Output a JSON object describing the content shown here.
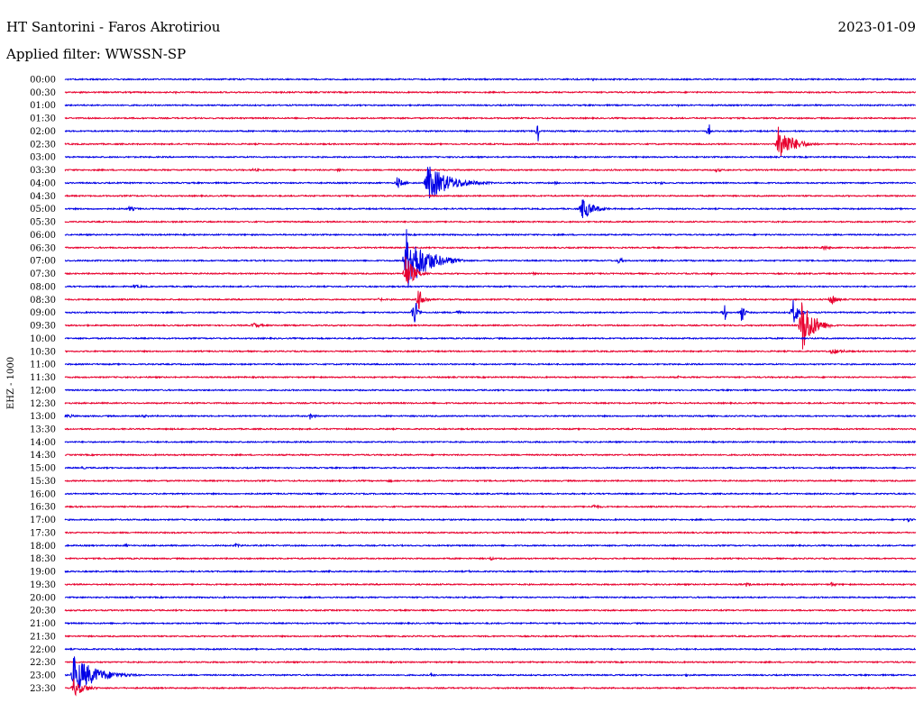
{
  "header": {
    "title": "HT Santorini - Faros Akrotiriou",
    "date": "2023-01-09",
    "filter": "Applied filter: WWSSN-SP"
  },
  "chart_data": {
    "type": "line",
    "title": "HT Santorini - Faros Akrotiriou",
    "ylabel": "EHZ - 1000",
    "filter": "WWSSN-SP",
    "colors": [
      "#0000e6",
      "#e8002e"
    ],
    "traces": [
      {
        "label": "00:00",
        "events": [
          {
            "t": 0.62,
            "a": 3,
            "d": 0.01
          }
        ]
      },
      {
        "label": "00:30",
        "events": [
          {
            "t": 0.13,
            "a": 2,
            "d": 0.01
          }
        ]
      },
      {
        "label": "01:00",
        "events": [
          {
            "t": 0.72,
            "a": 2,
            "d": 0.01
          }
        ]
      },
      {
        "label": "01:30",
        "events": []
      },
      {
        "label": "02:00",
        "events": [
          {
            "t": 0.556,
            "a": 18,
            "d": 0.002
          },
          {
            "t": 0.757,
            "a": 16,
            "d": 0.002
          }
        ]
      },
      {
        "label": "02:30",
        "events": [
          {
            "t": 0.838,
            "a": 22,
            "d": 0.05
          }
        ]
      },
      {
        "label": "03:00",
        "events": []
      },
      {
        "label": "03:30",
        "events": [
          {
            "t": 0.22,
            "a": 2,
            "d": 0.04
          },
          {
            "t": 0.32,
            "a": 3,
            "d": 0.02
          },
          {
            "t": 0.765,
            "a": 3,
            "d": 0.02
          }
        ]
      },
      {
        "label": "04:00",
        "events": [
          {
            "t": 0.39,
            "a": 8,
            "d": 0.02
          },
          {
            "t": 0.425,
            "a": 22,
            "d": 0.08
          },
          {
            "t": 0.575,
            "a": 2,
            "d": 0.02
          },
          {
            "t": 0.7,
            "a": 2,
            "d": 0.02
          }
        ]
      },
      {
        "label": "04:30",
        "events": []
      },
      {
        "label": "05:00",
        "events": [
          {
            "t": 0.075,
            "a": 3,
            "d": 0.03
          },
          {
            "t": 0.607,
            "a": 14,
            "d": 0.04
          }
        ]
      },
      {
        "label": "05:30",
        "events": [
          {
            "t": 0.88,
            "a": 1,
            "d": 0.02
          }
        ]
      },
      {
        "label": "06:00",
        "events": []
      },
      {
        "label": "06:30",
        "events": [
          {
            "t": 0.89,
            "a": 3,
            "d": 0.03
          }
        ]
      },
      {
        "label": "07:00",
        "events": [
          {
            "t": 0.4,
            "a": 38,
            "d": 0.07
          },
          {
            "t": 0.65,
            "a": 4,
            "d": 0.02
          }
        ]
      },
      {
        "label": "07:30",
        "events": [
          {
            "t": 0.4,
            "a": 22,
            "d": 0.03
          },
          {
            "t": 0.55,
            "a": 2,
            "d": 0.01
          },
          {
            "t": 0.76,
            "a": 2,
            "d": 0.01
          }
        ]
      },
      {
        "label": "08:00",
        "events": [
          {
            "t": 0.08,
            "a": 2,
            "d": 0.05
          }
        ]
      },
      {
        "label": "08:30",
        "events": [
          {
            "t": 0.37,
            "a": 6,
            "d": 0.005
          },
          {
            "t": 0.415,
            "a": 14,
            "d": 0.02
          },
          {
            "t": 0.9,
            "a": 8,
            "d": 0.02
          }
        ]
      },
      {
        "label": "09:00",
        "events": [
          {
            "t": 0.41,
            "a": 26,
            "d": 0.01
          },
          {
            "t": 0.46,
            "a": 3,
            "d": 0.02
          },
          {
            "t": 0.775,
            "a": 16,
            "d": 0.005
          },
          {
            "t": 0.795,
            "a": 14,
            "d": 0.01
          },
          {
            "t": 0.855,
            "a": 18,
            "d": 0.02
          }
        ]
      },
      {
        "label": "09:30",
        "events": [
          {
            "t": 0.22,
            "a": 4,
            "d": 0.03
          },
          {
            "t": 0.865,
            "a": 36,
            "d": 0.04
          }
        ]
      },
      {
        "label": "10:00",
        "events": [
          {
            "t": 0.65,
            "a": 1,
            "d": 0.02
          }
        ]
      },
      {
        "label": "10:30",
        "events": [
          {
            "t": 0.9,
            "a": 3,
            "d": 0.06
          }
        ]
      },
      {
        "label": "11:00",
        "events": []
      },
      {
        "label": "11:30",
        "events": [
          {
            "t": 0.72,
            "a": 2,
            "d": 0.01
          }
        ]
      },
      {
        "label": "12:00",
        "events": [
          {
            "t": 0.57,
            "a": 2,
            "d": 0.01
          },
          {
            "t": 0.61,
            "a": 3,
            "d": 0.005
          }
        ]
      },
      {
        "label": "12:30",
        "events": []
      },
      {
        "label": "13:00",
        "events": [
          {
            "t": 0.0,
            "a": 2,
            "d": 0.06
          },
          {
            "t": 0.09,
            "a": 2,
            "d": 0.04
          },
          {
            "t": 0.288,
            "a": 4,
            "d": 0.02
          }
        ]
      },
      {
        "label": "13:30",
        "events": []
      },
      {
        "label": "14:00",
        "events": []
      },
      {
        "label": "14:30",
        "events": []
      },
      {
        "label": "15:00",
        "events": [
          {
            "t": 0.02,
            "a": 2,
            "d": 0.02
          },
          {
            "t": 0.9,
            "a": 2,
            "d": 0.02
          }
        ]
      },
      {
        "label": "15:30",
        "events": [
          {
            "t": 0.38,
            "a": 2,
            "d": 0.02
          },
          {
            "t": 0.9,
            "a": 2,
            "d": 0.02
          }
        ]
      },
      {
        "label": "16:00",
        "events": []
      },
      {
        "label": "16:30",
        "events": [
          {
            "t": 0.62,
            "a": 3,
            "d": 0.03
          }
        ]
      },
      {
        "label": "17:00",
        "events": [
          {
            "t": 0.99,
            "a": 3,
            "d": 0.02
          }
        ]
      },
      {
        "label": "17:30",
        "events": []
      },
      {
        "label": "18:00",
        "events": [
          {
            "t": 0.07,
            "a": 2,
            "d": 0.02
          },
          {
            "t": 0.2,
            "a": 2,
            "d": 0.04
          }
        ]
      },
      {
        "label": "18:30",
        "events": [
          {
            "t": 0.5,
            "a": 3,
            "d": 0.01
          }
        ]
      },
      {
        "label": "19:00",
        "events": [
          {
            "t": 0.31,
            "a": 2,
            "d": 0.01
          },
          {
            "t": 0.475,
            "a": 2,
            "d": 0.01
          }
        ]
      },
      {
        "label": "19:30",
        "events": [
          {
            "t": 0.8,
            "a": 3,
            "d": 0.02
          },
          {
            "t": 0.9,
            "a": 3,
            "d": 0.02
          }
        ]
      },
      {
        "label": "20:00",
        "events": []
      },
      {
        "label": "20:30",
        "events": []
      },
      {
        "label": "21:00",
        "events": []
      },
      {
        "label": "21:30",
        "events": [
          {
            "t": 0.2,
            "a": 1,
            "d": 0.02
          }
        ]
      },
      {
        "label": "22:00",
        "events": []
      },
      {
        "label": "22:30",
        "events": []
      },
      {
        "label": "23:00",
        "events": [
          {
            "t": 0.01,
            "a": 22,
            "d": 0.08
          },
          {
            "t": 0.43,
            "a": 2,
            "d": 0.02
          },
          {
            "t": 0.73,
            "a": 2,
            "d": 0.02
          }
        ]
      },
      {
        "label": "23:30",
        "events": [
          {
            "t": 0.01,
            "a": 10,
            "d": 0.04
          }
        ]
      }
    ]
  }
}
